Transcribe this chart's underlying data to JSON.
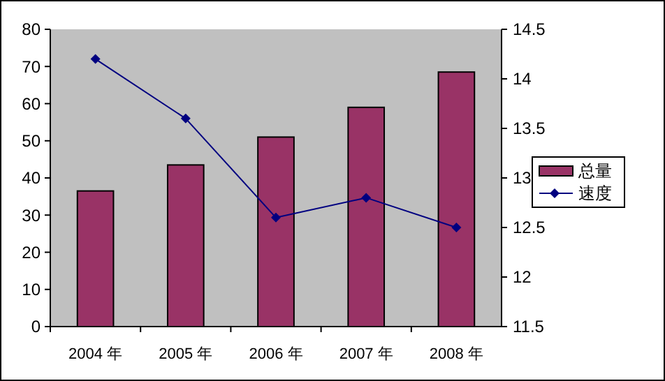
{
  "chart_data": {
    "type": "bar",
    "categories": [
      "2004 年",
      "2005 年",
      "2006 年",
      "2007 年",
      "2008 年"
    ],
    "series": [
      {
        "name": "总量",
        "color": "#993366",
        "values": [
          36.5,
          43.5,
          51,
          59,
          68.5
        ]
      },
      {
        "name": "速度",
        "type": "line",
        "axis": "y2",
        "color": "#000080",
        "values": [
          14.2,
          13.6,
          12.6,
          12.8,
          12.5
        ]
      }
    ],
    "ylim": [
      0,
      80
    ],
    "yticks": [
      0,
      10,
      20,
      30,
      40,
      50,
      60,
      70,
      80
    ],
    "y2lim": [
      11.5,
      14.5
    ],
    "y2ticks": [
      11.5,
      12,
      12.5,
      13,
      13.5,
      14,
      14.5
    ],
    "legend": "right",
    "marker": "diamond",
    "grid": false
  }
}
